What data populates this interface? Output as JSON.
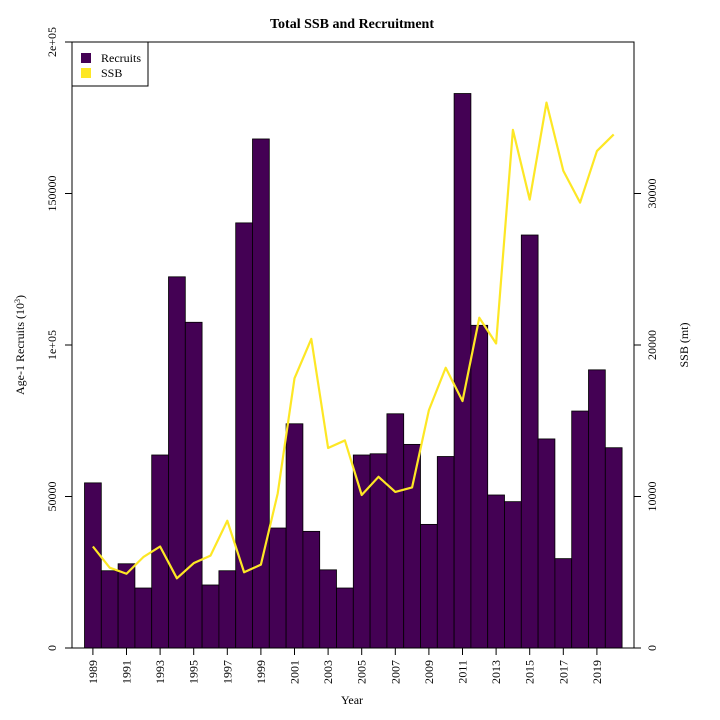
{
  "chart_data": {
    "type": "bar",
    "title": "Total SSB and Recruitment",
    "xlabel": "Year",
    "ylabel_left": "Age-1 Recruits (10",
    "ylabel_left_sup": "3",
    "ylabel_left_close": ")",
    "ylabel_right": "SSB (mt)",
    "years": [
      1989,
      1990,
      1991,
      1992,
      1993,
      1994,
      1995,
      1996,
      1997,
      1998,
      1999,
      2000,
      2001,
      2002,
      2003,
      2004,
      2005,
      2006,
      2007,
      2008,
      2009,
      2010,
      2011,
      2012,
      2013,
      2014,
      2015,
      2016,
      2017,
      2018,
      2019,
      2020
    ],
    "x_tick_labels": [
      "1989",
      "1991",
      "1993",
      "1995",
      "1997",
      "1999",
      "2001",
      "2003",
      "2005",
      "2007",
      "2009",
      "2011",
      "2013",
      "2015",
      "2017",
      "2019"
    ],
    "left_axis": {
      "ylim": [
        0,
        200000
      ],
      "ticks": [
        "0",
        "50000",
        "1e+05",
        "150000",
        "2e+05"
      ]
    },
    "right_axis": {
      "ylim": [
        0,
        40000
      ],
      "ticks": [
        "0",
        "10000",
        "20000",
        "30000"
      ]
    },
    "legend_position": "top-left",
    "series": [
      {
        "name": "Recruits",
        "kind": "bar",
        "axis": "left",
        "color": "#440154",
        "values": [
          54500,
          25500,
          27800,
          19800,
          63700,
          122500,
          107500,
          20800,
          25500,
          140300,
          168000,
          39600,
          74000,
          38500,
          25800,
          19800,
          63700,
          64100,
          77300,
          67200,
          40800,
          63200,
          183000,
          106500,
          50500,
          48300,
          136300,
          69000,
          29500,
          78200,
          91800,
          66100
        ]
      },
      {
        "name": "SSB",
        "kind": "line",
        "axis": "right",
        "color": "#FDE725",
        "values": [
          6700,
          5300,
          4900,
          6000,
          6700,
          4600,
          5600,
          6100,
          8400,
          5000,
          5500,
          10200,
          17800,
          20400,
          13200,
          13700,
          10100,
          11300,
          10300,
          10600,
          15700,
          18500,
          16300,
          21800,
          20100,
          34200,
          29600,
          36000,
          31500,
          29400,
          32800,
          33900
        ]
      }
    ]
  }
}
